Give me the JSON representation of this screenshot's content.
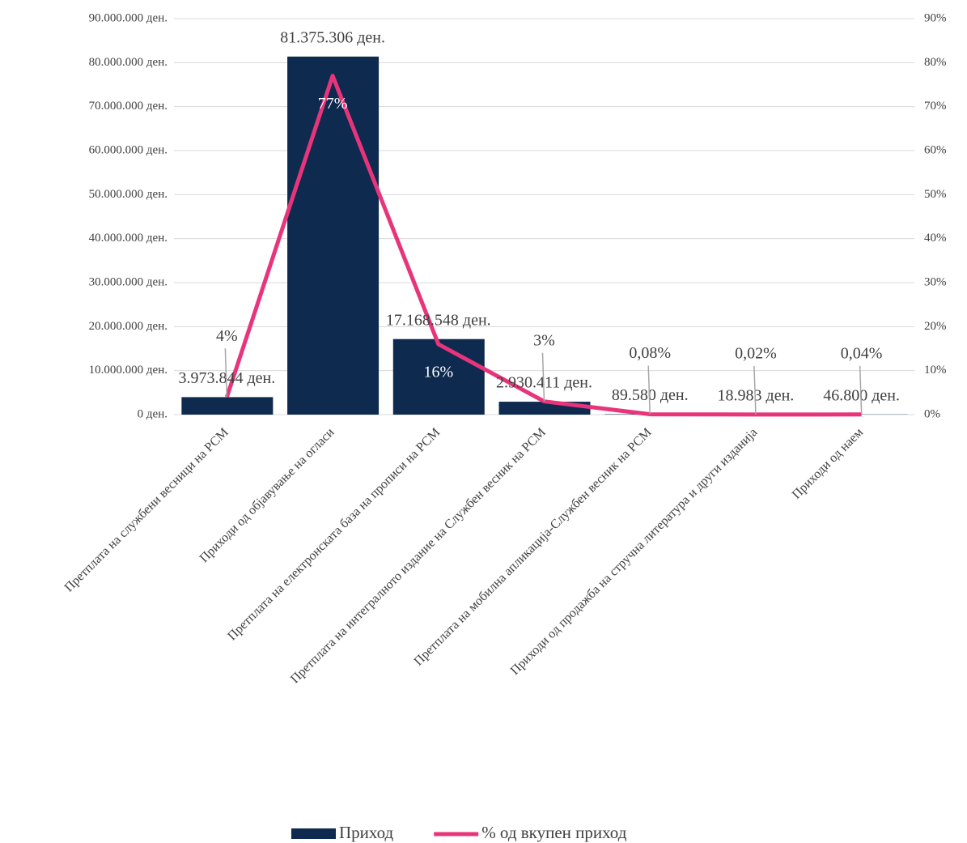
{
  "chart_data": {
    "type": "combo",
    "categories": [
      "Претплата на службени весници на РСМ",
      "Приходи од објавување на огласи",
      "Претплата на електронската база на прописи на РСМ",
      "Претплата на интегралното издание на Службен весник на РСМ",
      "Претплата на мобилна апликација-Службен весник на РСМ",
      "Приходи од продажба на стручна литература и други изданија",
      "Приходи од наем"
    ],
    "series": [
      {
        "name": "Приход",
        "color": "#0e2a4f",
        "type": "bar",
        "values": [
          3973844,
          81375306,
          17168548,
          2930411,
          89580,
          18983,
          46800
        ],
        "value_labels": [
          "3.973.844 ден.",
          "81.375.306 ден.",
          "17.168.548 ден.",
          "2.930.411 ден.",
          "89.580 ден.",
          "18.983 ден.",
          "46.800 ден."
        ]
      },
      {
        "name": "% од вкупен приход",
        "color": "#e8347a",
        "type": "line",
        "axis": "y2",
        "values": [
          4,
          77,
          16,
          3,
          0.08,
          0.02,
          0.04
        ],
        "value_labels": [
          "4%",
          "77%",
          "16%",
          "3%",
          "0,08%",
          "0,02%",
          "0,04%"
        ]
      }
    ],
    "ylim": [
      0,
      90000000
    ],
    "yticks": [
      {
        "value": 0,
        "label": "0 ден."
      },
      {
        "value": 10000000,
        "label": "10.000.000 ден."
      },
      {
        "value": 20000000,
        "label": "20.000.000 ден."
      },
      {
        "value": 30000000,
        "label": "30.000.000 ден."
      },
      {
        "value": 40000000,
        "label": "40.000.000 ден."
      },
      {
        "value": 50000000,
        "label": "50.000.000 ден."
      },
      {
        "value": 60000000,
        "label": "60.000.000 ден."
      },
      {
        "value": 70000000,
        "label": "70.000.000 ден."
      },
      {
        "value": 80000000,
        "label": "80.000.000 ден."
      },
      {
        "value": 90000000,
        "label": "90.000.000 ден."
      }
    ],
    "y2lim": [
      0,
      90
    ],
    "y2ticks": [
      {
        "value": 0,
        "label": "0%"
      },
      {
        "value": 10,
        "label": "10%"
      },
      {
        "value": 20,
        "label": "20%"
      },
      {
        "value": 30,
        "label": "30%"
      },
      {
        "value": 40,
        "label": "40%"
      },
      {
        "value": 50,
        "label": "50%"
      },
      {
        "value": 60,
        "label": "60%"
      },
      {
        "value": 70,
        "label": "70%"
      },
      {
        "value": 80,
        "label": "80%"
      },
      {
        "value": 90,
        "label": "90%"
      }
    ],
    "grid": true,
    "legend": "bottom"
  }
}
